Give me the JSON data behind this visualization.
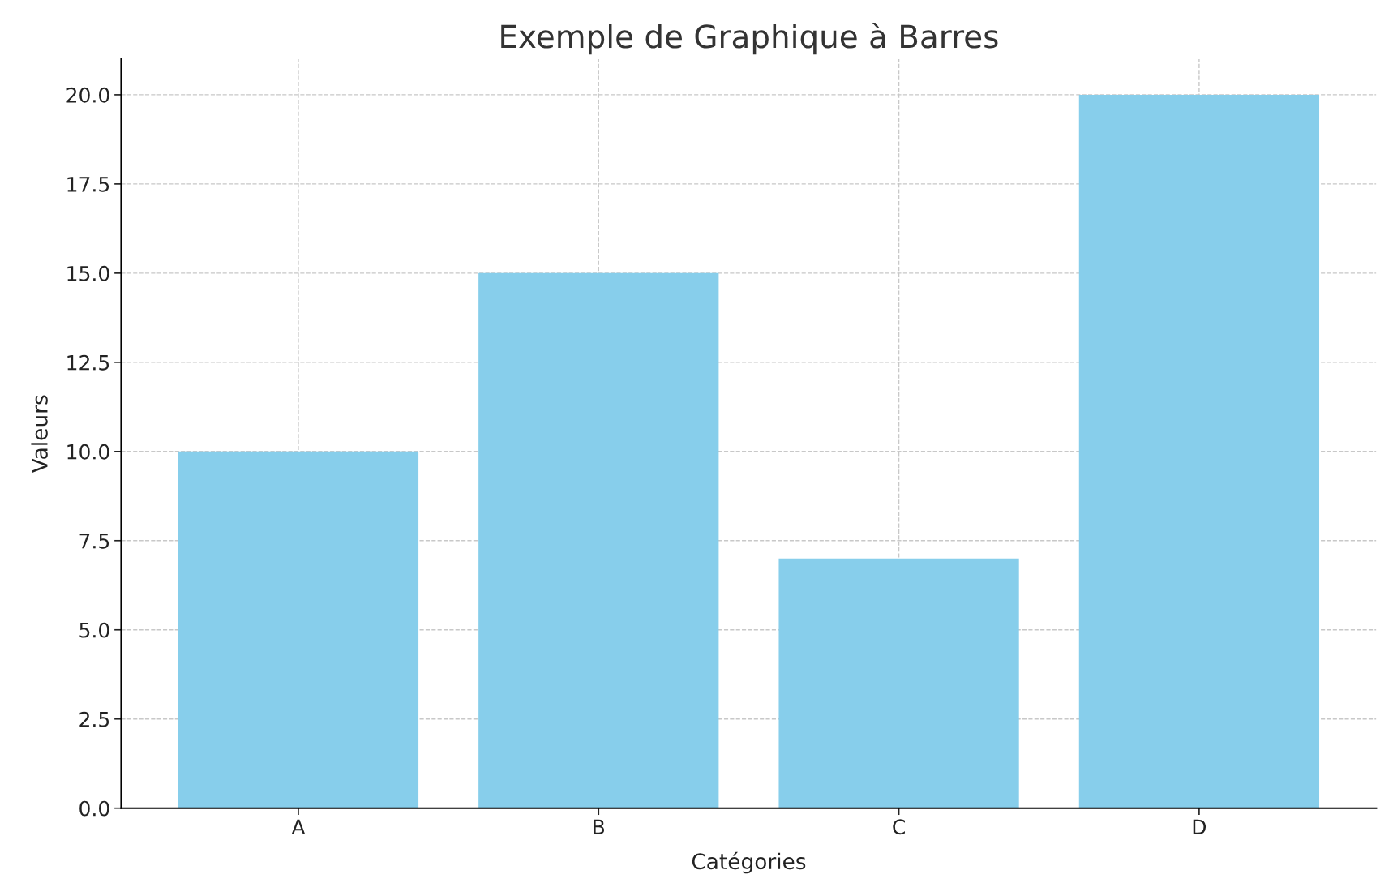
{
  "chart_data": {
    "type": "bar",
    "title": "Exemple de Graphique à Barres",
    "xlabel": "Catégories",
    "ylabel": "Valeurs",
    "categories": [
      "A",
      "B",
      "C",
      "D"
    ],
    "values": [
      10,
      15,
      7,
      20
    ],
    "color": "#87ceeb",
    "ylim": [
      0,
      21
    ],
    "yticks": [
      {
        "value": 0,
        "label": "0.0"
      },
      {
        "value": 2.5,
        "label": "2.5"
      },
      {
        "value": 5,
        "label": "5.0"
      },
      {
        "value": 7.5,
        "label": "7.5"
      },
      {
        "value": 10,
        "label": "10.0"
      },
      {
        "value": 12.5,
        "label": "12.5"
      },
      {
        "value": 15,
        "label": "15.0"
      },
      {
        "value": 17.5,
        "label": "17.5"
      },
      {
        "value": 20,
        "label": "20.0"
      }
    ],
    "grid": true
  }
}
